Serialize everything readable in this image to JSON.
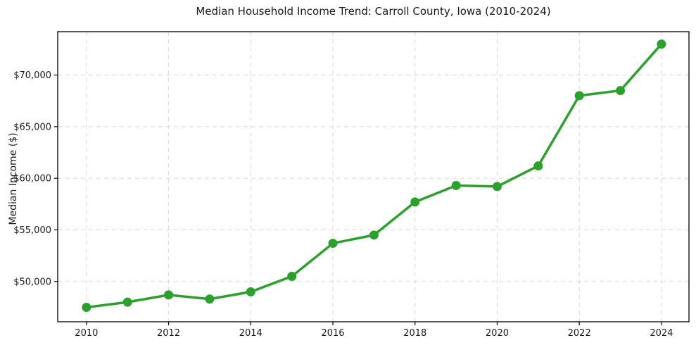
{
  "chart_data": {
    "type": "line",
    "title": "Median Household Income Trend: Carroll County, Iowa (2010-2024)",
    "xlabel": "",
    "ylabel": "Median Income ($)",
    "x": [
      2010,
      2011,
      2012,
      2013,
      2014,
      2015,
      2016,
      2017,
      2018,
      2019,
      2020,
      2021,
      2022,
      2023,
      2024
    ],
    "values": [
      47500,
      48000,
      48700,
      48300,
      49000,
      50500,
      53700,
      54500,
      57700,
      59300,
      59200,
      61200,
      68000,
      68500,
      73000
    ],
    "series_name": "Median Income",
    "xlim": [
      2009.3,
      2024.67
    ],
    "ylim": [
      46100,
      74200
    ],
    "xticks": [
      {
        "value": 2010,
        "label": "2010"
      },
      {
        "value": 2012,
        "label": "2012"
      },
      {
        "value": 2014,
        "label": "2014"
      },
      {
        "value": 2016,
        "label": "2016"
      },
      {
        "value": 2018,
        "label": "2018"
      },
      {
        "value": 2020,
        "label": "2020"
      },
      {
        "value": 2022,
        "label": "2022"
      },
      {
        "value": 2024,
        "label": "2024"
      }
    ],
    "yticks": [
      {
        "value": 50000,
        "label": "$50,000"
      },
      {
        "value": 55000,
        "label": "$55,000"
      },
      {
        "value": 60000,
        "label": "$60,000"
      },
      {
        "value": 65000,
        "label": "$65,000"
      },
      {
        "value": 70000,
        "label": "$70,000"
      }
    ],
    "grid": {
      "show": true,
      "style": "dashed",
      "color": "#d8d8d8"
    },
    "line": {
      "color": "#2ca02c",
      "width": 3.5,
      "marker": "circle",
      "marker_radius": 6.5
    },
    "axis_color": "#000000",
    "background_color": "#ffffff"
  }
}
